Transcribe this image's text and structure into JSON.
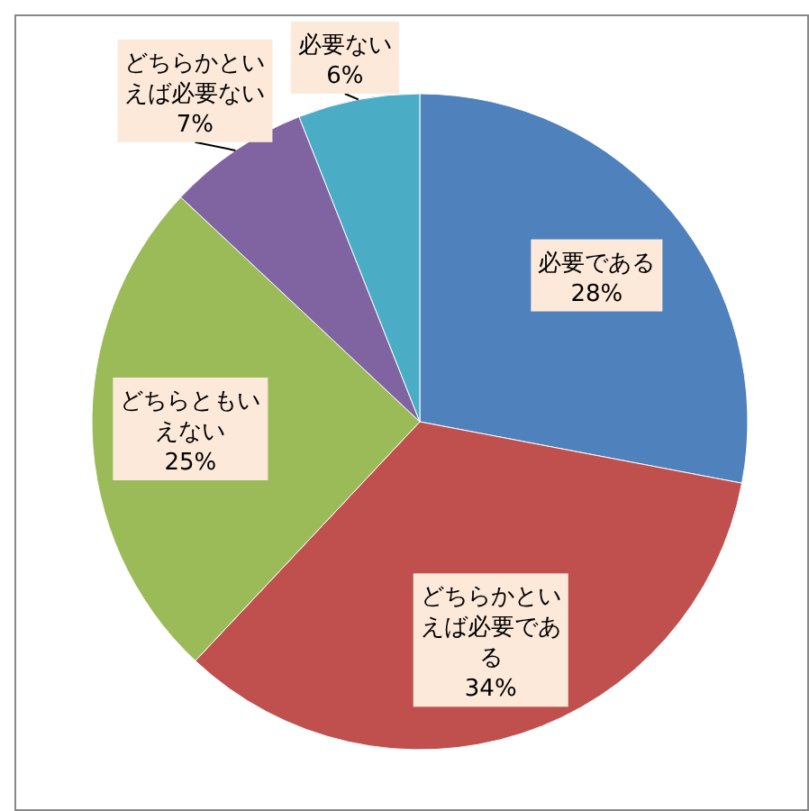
{
  "chart_data": {
    "type": "pie",
    "categories": [
      "必要である",
      "どちらかといえば必要である",
      "どちらともいえない",
      "どちらかといえば必要ない",
      "必要ない"
    ],
    "values": [
      28,
      34,
      25,
      7,
      6
    ],
    "colors": [
      "#4f81bd",
      "#c0504d",
      "#9bbb59",
      "#8064a2",
      "#4bacc6"
    ],
    "value_labels": [
      "28%",
      "34%",
      "25%",
      "7%",
      "6%"
    ]
  }
}
